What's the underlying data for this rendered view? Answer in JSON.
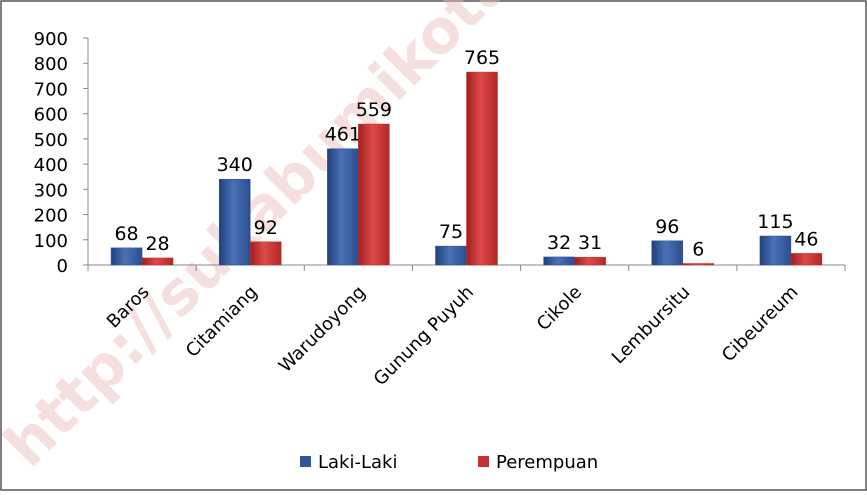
{
  "chart_data": {
    "type": "bar",
    "watermark": "http://sukabumikota.bp",
    "categories": [
      "Baros",
      "Citamiang",
      "Warudoyong",
      "Gunung Puyuh",
      "Cikole",
      "Lembursitu",
      "Cibeureum"
    ],
    "series": [
      {
        "name": "Laki-Laki",
        "color": "#2f559a",
        "values": [
          68,
          340,
          461,
          75,
          32,
          96,
          115
        ]
      },
      {
        "name": "Perempuan",
        "color": "#c73232",
        "values": [
          28,
          92,
          559,
          765,
          31,
          6,
          46
        ]
      }
    ],
    "ylim": [
      0,
      900
    ],
    "yticks": [
      0,
      100,
      200,
      300,
      400,
      500,
      600,
      700,
      800,
      900
    ],
    "legend": "bottom"
  }
}
